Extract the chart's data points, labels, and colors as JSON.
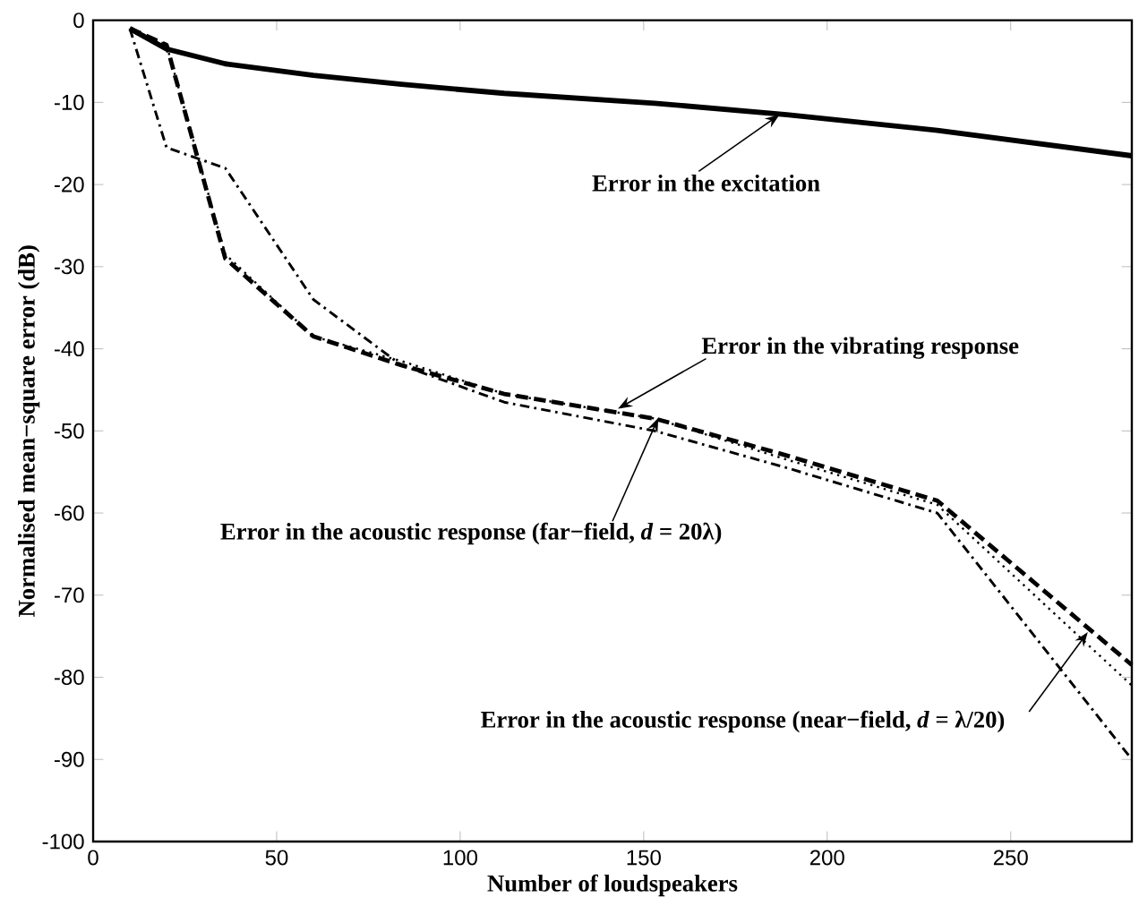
{
  "chart_data": {
    "type": "line",
    "xlabel": "Number of loudspeakers",
    "ylabel": "Normalised mean−square error (dB)",
    "xlim": [
      0,
      283
    ],
    "ylim": [
      -100,
      0
    ],
    "xticks": [
      0,
      50,
      100,
      150,
      200,
      250
    ],
    "yticks": [
      -100,
      -90,
      -80,
      -70,
      -60,
      -50,
      -40,
      -30,
      -20,
      -10,
      0
    ],
    "x": [
      10,
      20,
      36,
      60,
      84,
      112,
      153,
      189,
      230,
      283
    ],
    "series": [
      {
        "color": "#000000",
        "line_style": "solid",
        "values": [
          -1,
          -3.5,
          -5.3,
          -6.7,
          -7.8,
          -8.9,
          -10.1,
          -11.5,
          -13.4,
          -16.5
        ]
      },
      {
        "color": "#000000",
        "line_style": "dashed",
        "values": [
          -1,
          -3,
          -29,
          -38.5,
          -42,
          -45.5,
          -48.5,
          -53,
          -58.5,
          -78.5
        ]
      },
      {
        "color": "#000000",
        "line_style": "dashdot",
        "values": [
          -1,
          -15.5,
          -18,
          -34,
          -42,
          -46.5,
          -50,
          -54.5,
          -60,
          -90
        ]
      },
      {
        "color": "#000000",
        "line_style": "dotted",
        "values": [
          -1,
          -3,
          -28.5,
          -38.5,
          -41.5,
          -45.5,
          -48.5,
          -53.5,
          -59,
          -81
        ]
      }
    ],
    "annotations": [
      {
        "text": "Error in the excitation",
        "x": 187,
        "y": -11.5
      },
      {
        "text": "Error in the vibrating response",
        "x": 143,
        "y": -47.3
      },
      {
        "text": "Error in the acoustic response (far−field,  *d* = 20λ)",
        "x": 154,
        "y": -48.4
      },
      {
        "text": "Error in the acoustic response (near−field,  *d* = λ/20)",
        "x": 271,
        "y": -74.5
      }
    ]
  }
}
